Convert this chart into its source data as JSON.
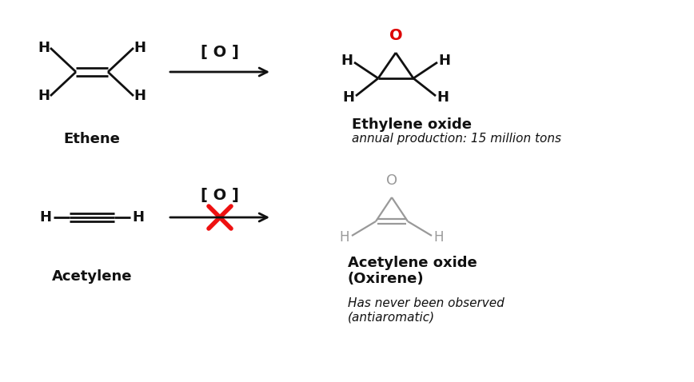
{
  "bg_color": "#ffffff",
  "black": "#111111",
  "gray": "#999999",
  "red": "#ee1111",
  "red_O": "#dd0000",
  "ethene_label": "Ethene",
  "arrow1_label": "[ O ]",
  "ethylene_oxide_label": "Ethylene oxide",
  "ethylene_oxide_sublabel": "annual production: 15 million tons",
  "acetylene_label": "Acetylene",
  "arrow2_label": "[ O ]",
  "acetylene_oxide_label1": "Acetylene oxide",
  "acetylene_oxide_label2": "(Oxirene)",
  "acetylene_oxide_sublabel1": "Has never been observed",
  "acetylene_oxide_sublabel2": "(antiaromatic)"
}
